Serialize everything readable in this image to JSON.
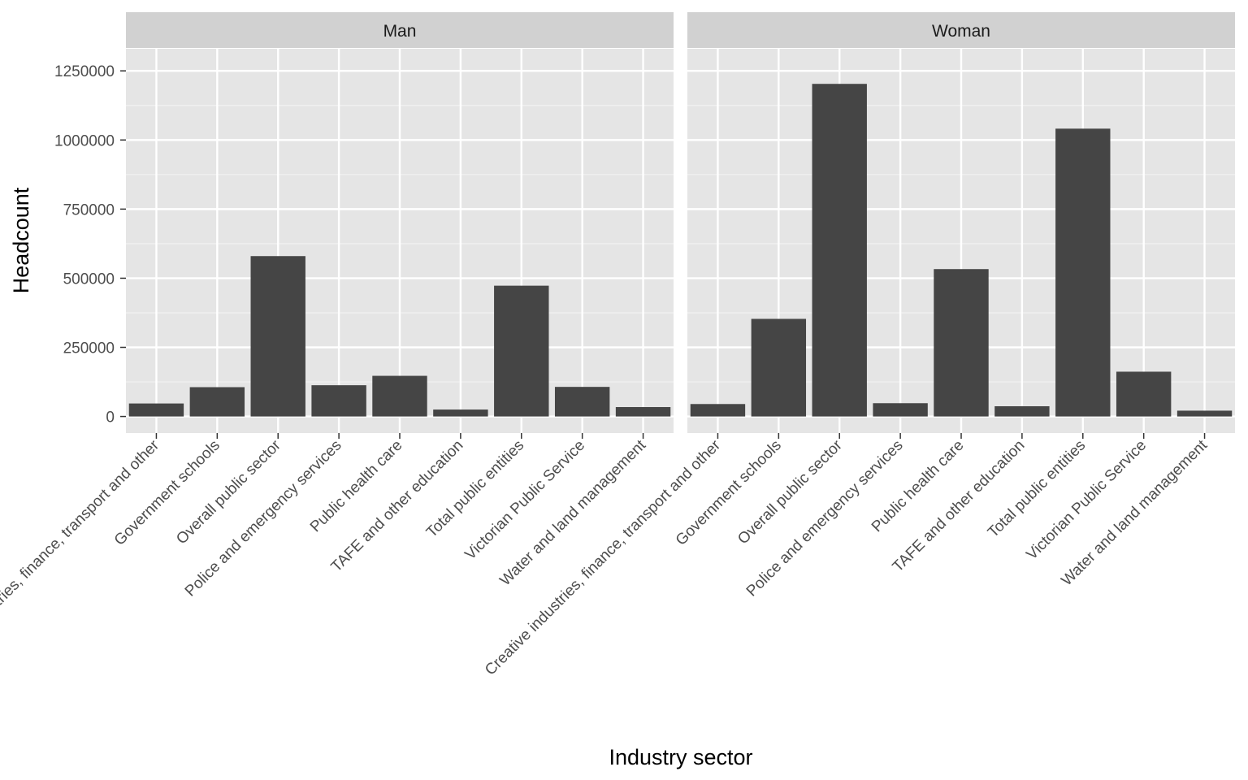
{
  "chart_data": {
    "type": "bar",
    "xlabel": "Industry sector",
    "ylabel": "Headcount",
    "ylim": [
      -60000,
      1330000
    ],
    "yticks": [
      0,
      250000,
      500000,
      750000,
      1000000,
      1250000
    ],
    "ytick_labels": [
      "0",
      "250000",
      "500000",
      "750000",
      "1000000",
      "1250000"
    ],
    "grid": true,
    "categories": [
      "Creative industries, finance, transport and other",
      "Government schools",
      "Overall public sector",
      "Police and emergency services",
      "Public health care",
      "TAFE and other education",
      "Total public entities",
      "Victorian Public Service",
      "Water and land management"
    ],
    "facets": [
      {
        "name": "Man",
        "values": [
          47000,
          106000,
          580000,
          113000,
          147000,
          25000,
          473000,
          107000,
          34000
        ]
      },
      {
        "name": "Woman",
        "values": [
          45000,
          353000,
          1203000,
          48000,
          533000,
          37000,
          1041000,
          162000,
          21000
        ]
      }
    ],
    "bar_color": "#454545",
    "panel_color": "#e5e5e5",
    "strip_color": "#d1d1d1"
  }
}
